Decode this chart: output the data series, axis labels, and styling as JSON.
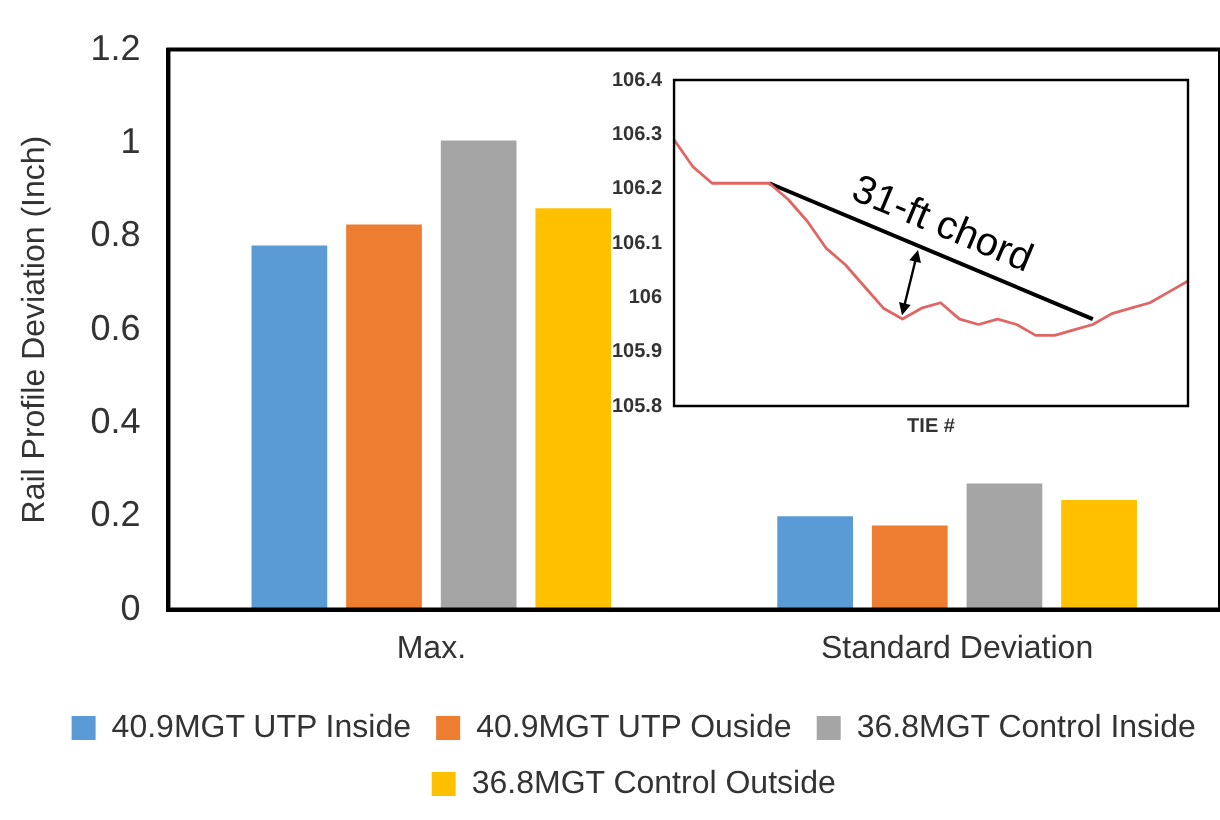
{
  "chart_data": [
    {
      "type": "bar",
      "ylabel": "Rail Profile Deviation (Inch)",
      "categories": [
        "Max.",
        "Standard Deviation"
      ],
      "series": [
        {
          "name": "40.9MGT UTP Inside",
          "color": "#5b9bd5",
          "values": [
            0.78,
            0.2
          ]
        },
        {
          "name": "40.9MGT UTP Ouside",
          "color": "#ed7d31",
          "values": [
            0.825,
            0.18
          ]
        },
        {
          "name": "36.8MGT Control Inside",
          "color": "#a5a5a5",
          "values": [
            1.005,
            0.27
          ]
        },
        {
          "name": "36.8MGT Control Outside",
          "color": "#ffc000",
          "values": [
            0.86,
            0.235
          ]
        }
      ],
      "ylim": [
        0,
        1.2
      ],
      "yticks": [
        0,
        0.2,
        0.4,
        0.6,
        0.8,
        1,
        1.2
      ],
      "grid": false,
      "legend": "bottom"
    },
    {
      "type": "line",
      "xlabel": "TIE #",
      "categories": [
        null,
        null,
        null,
        null,
        null,
        null,
        null,
        null,
        null,
        null,
        null,
        null,
        null,
        null,
        null,
        null,
        null,
        null,
        null,
        null,
        null,
        null,
        null,
        null,
        null,
        null,
        null,
        null
      ],
      "series": [
        {
          "color": "#e06666",
          "values": [
            106.29,
            106.24,
            106.21,
            106.21,
            106.21,
            106.21,
            106.18,
            106.14,
            106.09,
            106.06,
            106.02,
            105.98,
            105.96,
            105.98,
            105.99,
            105.96,
            105.95,
            105.96,
            105.95,
            105.93,
            105.93,
            105.94,
            105.95,
            105.97,
            105.98,
            105.99,
            106.01,
            106.03
          ]
        },
        {
          "color": "#000000",
          "values": [
            null,
            null,
            null,
            null,
            null,
            106.21,
            null,
            null,
            null,
            null,
            null,
            null,
            null,
            null,
            null,
            null,
            null,
            null,
            null,
            null,
            null,
            null,
            105.96,
            null,
            null,
            null,
            null,
            null
          ]
        }
      ],
      "annotations": [
        "31-ft chord"
      ],
      "ylim": [
        105.8,
        106.4
      ],
      "yticks": [
        105.8,
        105.9,
        106,
        106.1,
        106.2,
        106.3,
        106.4
      ],
      "grid": false,
      "tick_labels": "y",
      "legend": false,
      "marker": "none"
    }
  ]
}
